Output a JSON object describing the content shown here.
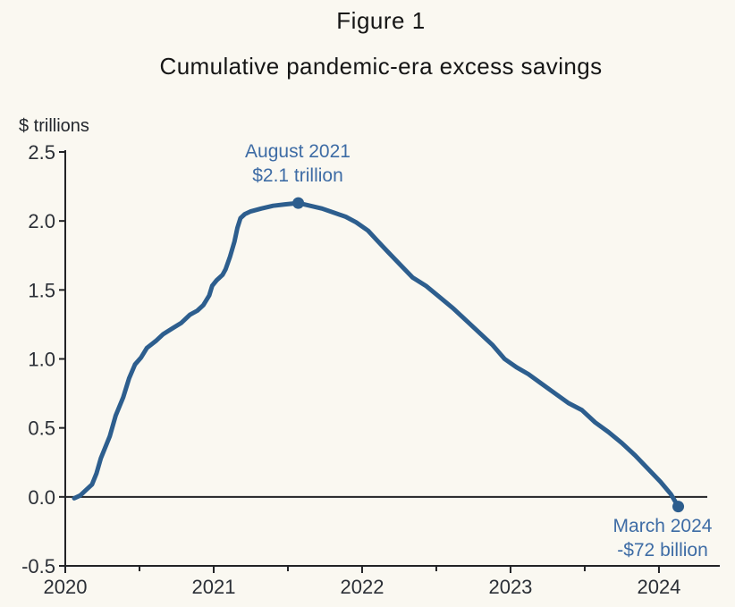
{
  "header": {
    "title": "Figure 1",
    "subtitle": "Cumulative pandemic-era excess savings"
  },
  "chart_data": {
    "type": "line",
    "title": "Cumulative pandemic-era excess savings",
    "unit_label": "$ trillions",
    "xlabel": "",
    "ylabel": "$ trillions",
    "xlim": [
      2020,
      2024.41
    ],
    "ylim": [
      -0.5,
      2.5
    ],
    "grid": false,
    "x_major_ticks": [
      2020,
      2021,
      2022,
      2023,
      2024
    ],
    "x_tick_labels": [
      "2020",
      "2021",
      "2022",
      "2023",
      "2024"
    ],
    "x_minor_ticks": [
      2020.5,
      2021.5,
      2022.5,
      2023.5
    ],
    "y_ticks": [
      2.5,
      2.0,
      1.5,
      1.0,
      0.5,
      0.0,
      -0.5
    ],
    "y_tick_labels": [
      "2.5",
      "2.0",
      "1.5",
      "1.0",
      "0.5",
      "0.0",
      "-0.5"
    ],
    "zero_line": true,
    "colors": {
      "background": "#FAF8F1",
      "line": "#2D5E8E",
      "marker": "#2D5E8E",
      "annotation_text": "#3E6CA5",
      "axis": "#222326",
      "tick_text": "#2B2F36"
    },
    "series": [
      {
        "name": "Cumulative pandemic-era excess savings",
        "points": [
          [
            2020.06,
            -0.01
          ],
          [
            2020.1,
            0.01
          ],
          [
            2020.15,
            0.06
          ],
          [
            2020.18,
            0.09
          ],
          [
            2020.21,
            0.17
          ],
          [
            2020.24,
            0.28
          ],
          [
            2020.3,
            0.44
          ],
          [
            2020.34,
            0.59
          ],
          [
            2020.39,
            0.72
          ],
          [
            2020.43,
            0.86
          ],
          [
            2020.47,
            0.96
          ],
          [
            2020.51,
            1.01
          ],
          [
            2020.55,
            1.08
          ],
          [
            2020.61,
            1.13
          ],
          [
            2020.66,
            1.18
          ],
          [
            2020.72,
            1.22
          ],
          [
            2020.78,
            1.26
          ],
          [
            2020.84,
            1.32
          ],
          [
            2020.89,
            1.35
          ],
          [
            2020.93,
            1.39
          ],
          [
            2020.97,
            1.46
          ],
          [
            2020.99,
            1.53
          ],
          [
            2021.02,
            1.57
          ],
          [
            2021.06,
            1.61
          ],
          [
            2021.08,
            1.65
          ],
          [
            2021.11,
            1.74
          ],
          [
            2021.14,
            1.85
          ],
          [
            2021.16,
            1.95
          ],
          [
            2021.18,
            2.02
          ],
          [
            2021.21,
            2.05
          ],
          [
            2021.25,
            2.07
          ],
          [
            2021.32,
            2.09
          ],
          [
            2021.4,
            2.11
          ],
          [
            2021.48,
            2.12
          ],
          [
            2021.57,
            2.13
          ],
          [
            2021.65,
            2.11
          ],
          [
            2021.73,
            2.09
          ],
          [
            2021.81,
            2.06
          ],
          [
            2021.89,
            2.03
          ],
          [
            2021.96,
            1.99
          ],
          [
            2022.04,
            1.93
          ],
          [
            2022.1,
            1.86
          ],
          [
            2022.17,
            1.78
          ],
          [
            2022.26,
            1.68
          ],
          [
            2022.34,
            1.59
          ],
          [
            2022.43,
            1.53
          ],
          [
            2022.52,
            1.45
          ],
          [
            2022.61,
            1.37
          ],
          [
            2022.7,
            1.28
          ],
          [
            2022.79,
            1.19
          ],
          [
            2022.88,
            1.1
          ],
          [
            2022.96,
            1.0
          ],
          [
            2023.04,
            0.94
          ],
          [
            2023.12,
            0.89
          ],
          [
            2023.21,
            0.82
          ],
          [
            2023.3,
            0.75
          ],
          [
            2023.39,
            0.68
          ],
          [
            2023.48,
            0.63
          ],
          [
            2023.57,
            0.54
          ],
          [
            2023.66,
            0.47
          ],
          [
            2023.75,
            0.39
          ],
          [
            2023.84,
            0.3
          ],
          [
            2023.92,
            0.21
          ],
          [
            2024.01,
            0.11
          ],
          [
            2024.08,
            0.02
          ],
          [
            2024.13,
            -0.07
          ]
        ]
      }
    ],
    "markers": [
      {
        "id": "peak",
        "x": 2021.57,
        "y": 2.13
      },
      {
        "id": "end",
        "x": 2024.13,
        "y": -0.07
      }
    ],
    "annotations": {
      "peak": {
        "line1": "August 2021",
        "line2": "$2.1 trillion"
      },
      "end": {
        "line1": "March 2024",
        "line2": "-$72 billion"
      }
    }
  }
}
